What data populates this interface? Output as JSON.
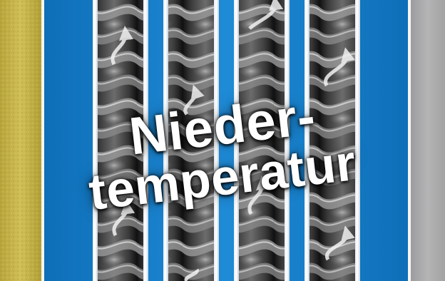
{
  "label": {
    "line1": "Nieder-",
    "line2": "temperatur"
  },
  "colors": {
    "insulation": "#c6b54a",
    "blue": "#1c86d2",
    "pipe_dark": "#2b2b2b",
    "gray_right": "#a9a9aa",
    "text": "#ffffff"
  }
}
